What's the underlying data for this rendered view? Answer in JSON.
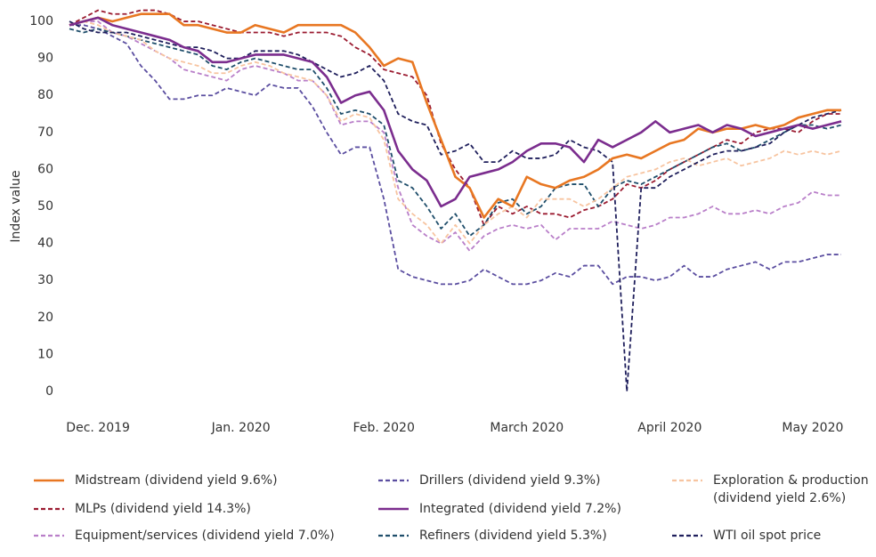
{
  "chart_data": {
    "type": "line",
    "y_label": "Index value",
    "categories": [
      null,
      null,
      "Dec. 2019",
      null,
      null,
      null,
      null,
      null,
      null,
      null,
      null,
      null,
      "Jan. 2020",
      null,
      null,
      null,
      null,
      null,
      null,
      null,
      null,
      null,
      "Feb. 2020",
      null,
      null,
      null,
      null,
      null,
      null,
      null,
      null,
      null,
      "March 2020",
      null,
      null,
      null,
      null,
      null,
      null,
      null,
      null,
      null,
      "April 2020",
      null,
      null,
      null,
      null,
      null,
      null,
      null,
      null,
      null,
      "May 2020",
      null,
      null
    ],
    "ylim": [
      -2,
      104
    ],
    "yticks": [
      0,
      10,
      20,
      30,
      40,
      50,
      60,
      70,
      80,
      90,
      100
    ],
    "grid": false,
    "series": [
      {
        "name": "Midstream (dividend yield 9.6%)",
        "color": "#e87722",
        "style": "solid",
        "values": [
          99,
          100,
          101,
          100,
          101,
          102,
          102,
          102,
          99,
          99,
          98,
          97,
          97,
          99,
          98,
          97,
          99,
          99,
          99,
          99,
          97,
          93,
          88,
          90,
          89,
          78,
          68,
          58,
          55,
          47,
          52,
          50,
          58,
          56,
          55,
          57,
          58,
          60,
          63,
          64,
          63,
          65,
          67,
          68,
          71,
          70,
          71,
          71,
          72,
          71,
          72,
          74,
          75,
          76,
          76
        ]
      },
      {
        "name": "MLPs (dividend yield 14.3%)",
        "color": "#9b1b30",
        "style": "dashed",
        "values": [
          99,
          101,
          103,
          102,
          102,
          103,
          103,
          102,
          100,
          100,
          99,
          98,
          97,
          97,
          97,
          96,
          97,
          97,
          97,
          96,
          93,
          91,
          87,
          86,
          85,
          80,
          67,
          60,
          55,
          45,
          50,
          48,
          50,
          48,
          48,
          47,
          49,
          50,
          52,
          56,
          55,
          57,
          60,
          62,
          64,
          66,
          68,
          67,
          70,
          71,
          71,
          70,
          73,
          75,
          75
        ]
      },
      {
        "name": "Equipment/services (dividend yield 7.0%)",
        "color": "#b97fc9",
        "style": "dashed",
        "values": [
          99,
          100,
          100,
          97,
          96,
          94,
          92,
          90,
          87,
          86,
          85,
          84,
          87,
          88,
          87,
          86,
          84,
          84,
          80,
          72,
          73,
          73,
          70,
          55,
          45,
          42,
          40,
          43,
          38,
          42,
          44,
          45,
          44,
          45,
          41,
          44,
          44,
          44,
          46,
          45,
          44,
          45,
          47,
          47,
          48,
          50,
          48,
          48,
          49,
          48,
          50,
          51,
          54,
          53,
          53
        ]
      },
      {
        "name": "Drillers (dividend yield 9.3%)",
        "color": "#5b4ea0",
        "style": "dashed",
        "values": [
          99,
          99,
          98,
          96,
          94,
          88,
          84,
          79,
          79,
          80,
          80,
          82,
          81,
          80,
          83,
          82,
          82,
          77,
          70,
          64,
          66,
          66,
          52,
          33,
          31,
          30,
          29,
          29,
          30,
          33,
          31,
          29,
          29,
          30,
          32,
          31,
          34,
          34,
          29,
          31,
          31,
          30,
          31,
          34,
          31,
          31,
          33,
          34,
          35,
          33,
          35,
          35,
          36,
          37,
          37
        ]
      },
      {
        "name": "Integrated (dividend yield 7.2%)",
        "color": "#7b2d8e",
        "style": "solid",
        "values": [
          99,
          100,
          101,
          99,
          98,
          97,
          96,
          95,
          93,
          92,
          89,
          89,
          90,
          91,
          91,
          91,
          90,
          89,
          85,
          78,
          80,
          81,
          76,
          65,
          60,
          57,
          50,
          52,
          58,
          59,
          60,
          62,
          65,
          67,
          67,
          66,
          62,
          68,
          66,
          68,
          70,
          73,
          70,
          71,
          72,
          70,
          72,
          71,
          69,
          70,
          71,
          72,
          71,
          72,
          73
        ]
      },
      {
        "name": "Refiners (dividend yield 5.3%)",
        "color": "#1f4e6b",
        "style": "dashed",
        "values": [
          98,
          97,
          98,
          97,
          96,
          95,
          94,
          93,
          92,
          91,
          88,
          87,
          89,
          90,
          89,
          88,
          87,
          87,
          82,
          75,
          76,
          75,
          72,
          57,
          55,
          50,
          44,
          48,
          42,
          45,
          51,
          52,
          48,
          50,
          55,
          56,
          56,
          50,
          55,
          57,
          56,
          58,
          60,
          62,
          64,
          66,
          67,
          65,
          66,
          68,
          70,
          72,
          72,
          71,
          72
        ]
      },
      {
        "name": "Exploration & production (dividend yield 2.6%)",
        "color": "#f7c4a0",
        "style": "dashed",
        "values": [
          99,
          100,
          99,
          97,
          96,
          95,
          92,
          90,
          89,
          88,
          86,
          86,
          88,
          89,
          88,
          86,
          85,
          84,
          80,
          73,
          75,
          74,
          68,
          52,
          48,
          45,
          40,
          45,
          40,
          45,
          48,
          50,
          47,
          52,
          52,
          52,
          50,
          52,
          55,
          58,
          59,
          60,
          62,
          63,
          61,
          62,
          63,
          61,
          62,
          63,
          65,
          64,
          65,
          64,
          65
        ]
      },
      {
        "name": "WTI oil spot price",
        "color": "#1f1f5c",
        "style": "dashed",
        "values": [
          100,
          98,
          97,
          97,
          97,
          96,
          95,
          94,
          93,
          93,
          92,
          90,
          90,
          92,
          92,
          92,
          91,
          89,
          87,
          85,
          86,
          88,
          84,
          75,
          73,
          72,
          64,
          65,
          67,
          62,
          62,
          65,
          63,
          63,
          64,
          68,
          66,
          65,
          62,
          0,
          55,
          55,
          58,
          60,
          62,
          64,
          65,
          65,
          66,
          67,
          70,
          72,
          74,
          75,
          76
        ]
      }
    ]
  }
}
